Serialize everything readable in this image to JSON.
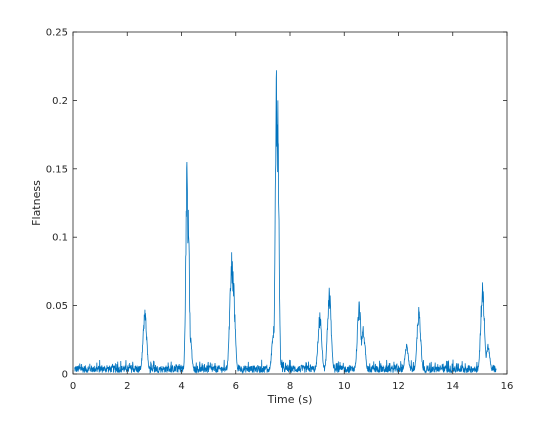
{
  "chart_data": {
    "type": "line",
    "title": "",
    "xlabel": "Time (s)",
    "ylabel": "Flatness",
    "xlim": [
      0,
      16
    ],
    "ylim": [
      0,
      0.25
    ],
    "xticks": [
      0,
      2,
      4,
      6,
      8,
      10,
      12,
      14,
      16
    ],
    "xtick_labels": [
      "0",
      "2",
      "4",
      "6",
      "8",
      "10",
      "12",
      "14",
      "16"
    ],
    "yticks": [
      0,
      0.05,
      0.1,
      0.15,
      0.2,
      0.25
    ],
    "ytick_labels": [
      "0",
      "0.05",
      "0.1",
      "0.15",
      "0.2",
      "0.25"
    ],
    "grid": false,
    "legend": "none",
    "line_color": "#0072BD",
    "series": [
      {
        "x_range": [
          0.05,
          15.6
        ],
        "baseline": 0.003,
        "noise_max": 0.006,
        "peaks": [
          {
            "x": 2.65,
            "y": 0.047
          },
          {
            "x": 4.2,
            "y": 0.155
          },
          {
            "x": 4.25,
            "y": 0.12
          },
          {
            "x": 4.3,
            "y": 0.035
          },
          {
            "x": 5.85,
            "y": 0.089
          },
          {
            "x": 5.9,
            "y": 0.075
          },
          {
            "x": 7.4,
            "y": 0.035
          },
          {
            "x": 7.5,
            "y": 0.222
          },
          {
            "x": 7.55,
            "y": 0.2
          },
          {
            "x": 9.1,
            "y": 0.045
          },
          {
            "x": 9.45,
            "y": 0.063
          },
          {
            "x": 10.55,
            "y": 0.053
          },
          {
            "x": 10.7,
            "y": 0.035
          },
          {
            "x": 12.3,
            "y": 0.022
          },
          {
            "x": 12.75,
            "y": 0.049
          },
          {
            "x": 15.1,
            "y": 0.067
          },
          {
            "x": 15.3,
            "y": 0.022
          }
        ]
      }
    ]
  }
}
